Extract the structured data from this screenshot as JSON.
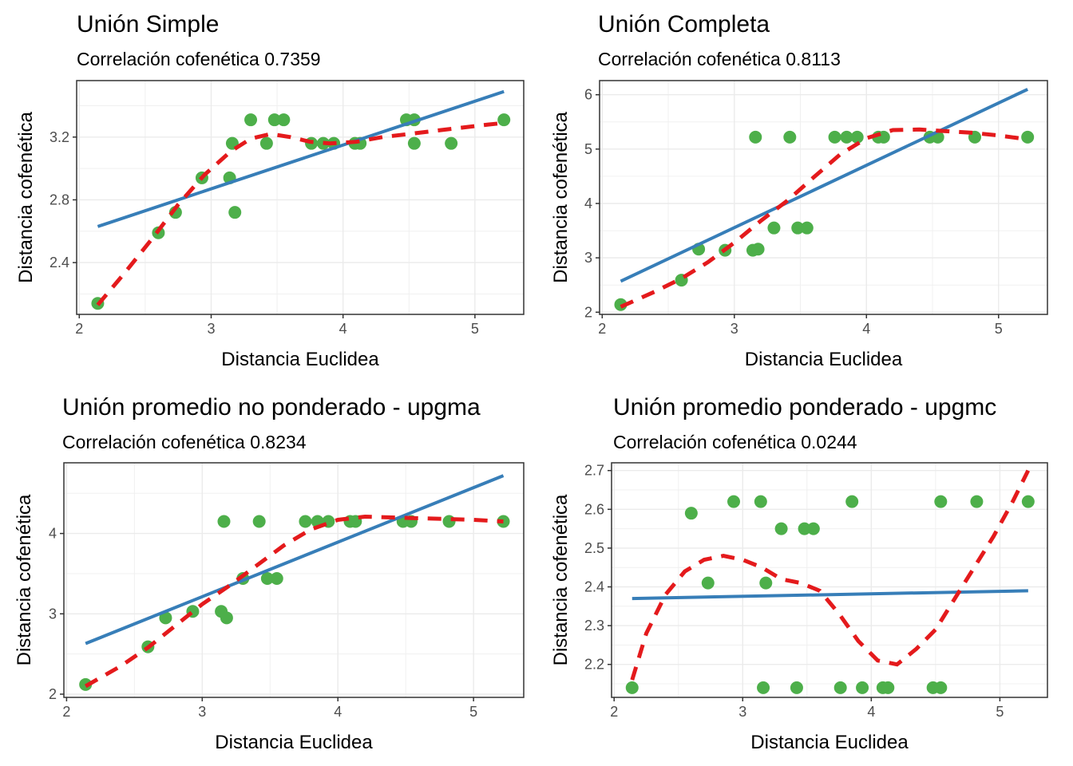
{
  "chart_data": [
    {
      "type": "scatter",
      "title": "Unión Simple",
      "subtitle": "Correlación cofenética 0.7359",
      "xlabel": "Distancia Euclidea",
      "ylabel": "Distancia cofenética",
      "xlim": [
        1.98,
        5.37
      ],
      "ylim": [
        2.07,
        3.56
      ],
      "xticks": [
        2,
        3,
        4,
        5
      ],
      "yticks": [
        2.4,
        2.8,
        3.2
      ],
      "ytick_labels": [
        "2.4",
        "2.8",
        "3.2"
      ],
      "grid": true,
      "points": [
        [
          2.14,
          2.14
        ],
        [
          2.6,
          2.59
        ],
        [
          2.73,
          2.72
        ],
        [
          2.93,
          2.94
        ],
        [
          3.14,
          2.94
        ],
        [
          3.16,
          3.16
        ],
        [
          3.18,
          2.72
        ],
        [
          3.3,
          3.31
        ],
        [
          3.42,
          3.16
        ],
        [
          3.48,
          3.31
        ],
        [
          3.55,
          3.31
        ],
        [
          3.76,
          3.16
        ],
        [
          3.85,
          3.16
        ],
        [
          3.93,
          3.16
        ],
        [
          4.09,
          3.16
        ],
        [
          4.13,
          3.16
        ],
        [
          4.48,
          3.31
        ],
        [
          4.54,
          3.31
        ],
        [
          4.54,
          3.16
        ],
        [
          4.82,
          3.16
        ],
        [
          5.22,
          3.31
        ]
      ],
      "linear_fit": [
        [
          2.14,
          2.63
        ],
        [
          5.22,
          3.49
        ]
      ],
      "smooth_fit": [
        [
          2.14,
          2.13
        ],
        [
          2.35,
          2.34
        ],
        [
          2.55,
          2.55
        ],
        [
          2.75,
          2.77
        ],
        [
          2.95,
          2.96
        ],
        [
          3.15,
          3.11
        ],
        [
          3.3,
          3.19
        ],
        [
          3.45,
          3.22
        ],
        [
          3.6,
          3.2
        ],
        [
          3.75,
          3.17
        ],
        [
          3.9,
          3.16
        ],
        [
          4.1,
          3.17
        ],
        [
          4.3,
          3.2
        ],
        [
          4.5,
          3.22
        ],
        [
          4.7,
          3.24
        ],
        [
          4.9,
          3.26
        ],
        [
          5.1,
          3.28
        ],
        [
          5.22,
          3.29
        ]
      ]
    },
    {
      "type": "scatter",
      "title": "Unión Completa",
      "subtitle": "Correlación cofenética 0.8113",
      "xlabel": "Distancia Euclidea",
      "ylabel": "Distancia cofenética",
      "xlim": [
        1.98,
        5.37
      ],
      "ylim": [
        1.96,
        6.26
      ],
      "xticks": [
        2,
        3,
        4,
        5
      ],
      "yticks": [
        2,
        3,
        4,
        5,
        6
      ],
      "ytick_labels": [
        "2",
        "3",
        "4",
        "5",
        "6"
      ],
      "grid": true,
      "points": [
        [
          2.14,
          2.14
        ],
        [
          2.6,
          2.59
        ],
        [
          2.73,
          3.16
        ],
        [
          2.93,
          3.14
        ],
        [
          3.14,
          3.14
        ],
        [
          3.16,
          5.22
        ],
        [
          3.18,
          3.16
        ],
        [
          3.42,
          5.22
        ],
        [
          3.3,
          3.55
        ],
        [
          3.48,
          3.55
        ],
        [
          3.55,
          3.55
        ],
        [
          3.76,
          5.22
        ],
        [
          3.85,
          5.22
        ],
        [
          3.93,
          5.22
        ],
        [
          4.09,
          5.22
        ],
        [
          4.13,
          5.22
        ],
        [
          4.48,
          5.22
        ],
        [
          4.54,
          5.22
        ],
        [
          4.82,
          5.22
        ],
        [
          5.22,
          5.22
        ]
      ],
      "linear_fit": [
        [
          2.14,
          2.57
        ],
        [
          5.22,
          6.1
        ]
      ],
      "smooth_fit": [
        [
          2.14,
          2.1
        ],
        [
          2.4,
          2.38
        ],
        [
          2.6,
          2.62
        ],
        [
          2.8,
          2.92
        ],
        [
          3.0,
          3.28
        ],
        [
          3.2,
          3.68
        ],
        [
          3.4,
          4.05
        ],
        [
          3.6,
          4.48
        ],
        [
          3.8,
          4.9
        ],
        [
          4.0,
          5.2
        ],
        [
          4.2,
          5.35
        ],
        [
          4.4,
          5.36
        ],
        [
          4.6,
          5.33
        ],
        [
          4.8,
          5.3
        ],
        [
          5.0,
          5.25
        ],
        [
          5.22,
          5.18
        ]
      ]
    },
    {
      "type": "scatter",
      "title": "Unión promedio no ponderado - upgma",
      "subtitle": "Correlación cofenética 0.8234",
      "xlabel": "Distancia Euclidea",
      "ylabel": "Distancia cofenética",
      "xlim": [
        1.98,
        5.37
      ],
      "ylim": [
        1.96,
        4.88
      ],
      "xticks": [
        2,
        3,
        4,
        5
      ],
      "yticks": [
        2,
        3,
        4
      ],
      "ytick_labels": [
        "2",
        "3",
        "4"
      ],
      "grid": true,
      "points": [
        [
          2.14,
          2.12
        ],
        [
          2.6,
          2.59
        ],
        [
          2.73,
          2.95
        ],
        [
          2.93,
          3.03
        ],
        [
          3.14,
          3.03
        ],
        [
          3.16,
          4.15
        ],
        [
          3.18,
          2.95
        ],
        [
          3.3,
          3.44
        ],
        [
          3.42,
          4.15
        ],
        [
          3.48,
          3.44
        ],
        [
          3.55,
          3.44
        ],
        [
          3.76,
          4.15
        ],
        [
          3.85,
          4.15
        ],
        [
          3.93,
          4.15
        ],
        [
          4.09,
          4.15
        ],
        [
          4.13,
          4.15
        ],
        [
          4.48,
          4.15
        ],
        [
          4.54,
          4.15
        ],
        [
          4.82,
          4.15
        ],
        [
          5.22,
          4.15
        ]
      ],
      "linear_fit": [
        [
          2.14,
          2.63
        ],
        [
          5.22,
          4.72
        ]
      ],
      "smooth_fit": [
        [
          2.14,
          2.1
        ],
        [
          2.4,
          2.35
        ],
        [
          2.6,
          2.58
        ],
        [
          2.8,
          2.85
        ],
        [
          3.0,
          3.12
        ],
        [
          3.2,
          3.35
        ],
        [
          3.4,
          3.6
        ],
        [
          3.6,
          3.85
        ],
        [
          3.8,
          4.05
        ],
        [
          4.0,
          4.17
        ],
        [
          4.2,
          4.21
        ],
        [
          4.4,
          4.2
        ],
        [
          4.6,
          4.19
        ],
        [
          4.8,
          4.18
        ],
        [
          5.0,
          4.17
        ],
        [
          5.22,
          4.15
        ]
      ]
    },
    {
      "type": "scatter",
      "title": "Unión promedio ponderado - upgmc",
      "subtitle": "Correlación cofenética 0.0244",
      "xlabel": "Distancia Euclidea",
      "ylabel": "Distancia cofenética",
      "xlim": [
        1.98,
        5.37
      ],
      "ylim": [
        2.115,
        2.72
      ],
      "xticks": [
        2,
        3,
        4,
        5
      ],
      "yticks": [
        2.2,
        2.3,
        2.4,
        2.5,
        2.6,
        2.7
      ],
      "ytick_labels": [
        "2.2",
        "2.3",
        "2.4",
        "2.5",
        "2.6",
        "2.7"
      ],
      "grid": true,
      "points": [
        [
          2.14,
          2.14
        ],
        [
          2.6,
          2.59
        ],
        [
          2.73,
          2.41
        ],
        [
          2.93,
          2.62
        ],
        [
          3.14,
          2.62
        ],
        [
          3.16,
          2.14
        ],
        [
          3.18,
          2.41
        ],
        [
          3.3,
          2.55
        ],
        [
          3.42,
          2.14
        ],
        [
          3.48,
          2.55
        ],
        [
          3.55,
          2.55
        ],
        [
          3.76,
          2.14
        ],
        [
          3.85,
          2.62
        ],
        [
          3.93,
          2.14
        ],
        [
          4.09,
          2.14
        ],
        [
          4.13,
          2.14
        ],
        [
          4.48,
          2.14
        ],
        [
          4.54,
          2.14
        ],
        [
          4.54,
          2.62
        ],
        [
          4.82,
          2.62
        ],
        [
          5.22,
          2.62
        ]
      ],
      "linear_fit": [
        [
          2.14,
          2.37
        ],
        [
          5.22,
          2.39
        ]
      ],
      "smooth_fit": [
        [
          2.14,
          2.16
        ],
        [
          2.25,
          2.28
        ],
        [
          2.4,
          2.38
        ],
        [
          2.55,
          2.44
        ],
        [
          2.7,
          2.47
        ],
        [
          2.85,
          2.48
        ],
        [
          3.0,
          2.47
        ],
        [
          3.15,
          2.45
        ],
        [
          3.3,
          2.42
        ],
        [
          3.45,
          2.41
        ],
        [
          3.6,
          2.39
        ],
        [
          3.75,
          2.33
        ],
        [
          3.9,
          2.26
        ],
        [
          4.05,
          2.21
        ],
        [
          4.2,
          2.2
        ],
        [
          4.35,
          2.24
        ],
        [
          4.5,
          2.29
        ],
        [
          4.65,
          2.37
        ],
        [
          4.8,
          2.45
        ],
        [
          4.95,
          2.53
        ],
        [
          5.1,
          2.62
        ],
        [
          5.22,
          2.7
        ]
      ]
    }
  ]
}
